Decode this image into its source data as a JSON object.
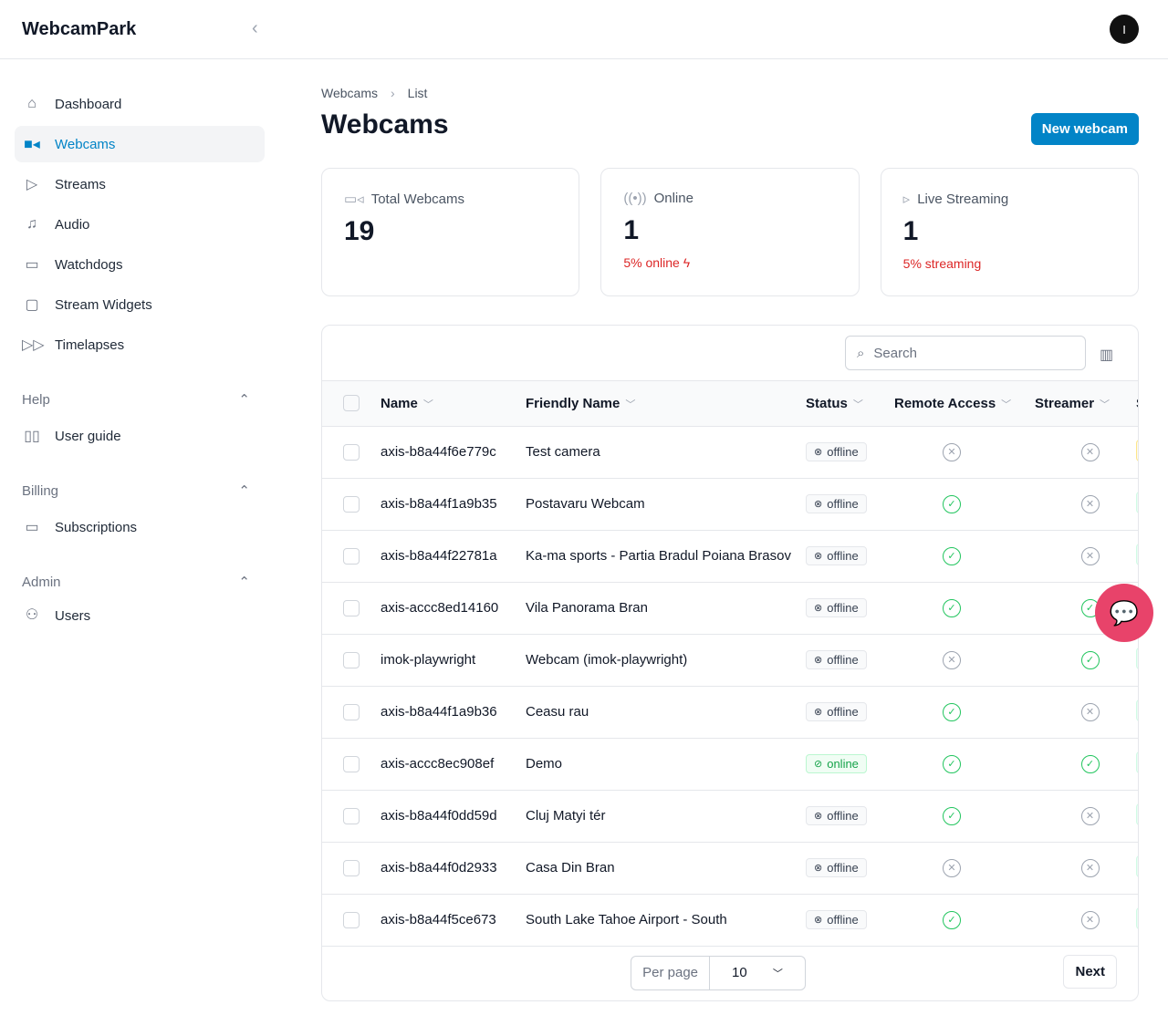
{
  "app": {
    "title": "WebcamPark",
    "avatar_initial": "I"
  },
  "sidebar": {
    "items": [
      {
        "label": "Dashboard",
        "icon": "home-icon"
      },
      {
        "label": "Webcams",
        "icon": "video-icon",
        "active": true
      },
      {
        "label": "Streams",
        "icon": "play-icon"
      },
      {
        "label": "Audio",
        "icon": "music-icon"
      },
      {
        "label": "Watchdogs",
        "icon": "monitor-icon"
      },
      {
        "label": "Stream Widgets",
        "icon": "message-icon"
      },
      {
        "label": "Timelapses",
        "icon": "fast-forward-icon"
      }
    ],
    "help": {
      "label": "Help",
      "items": [
        {
          "label": "User guide"
        }
      ]
    },
    "billing": {
      "label": "Billing",
      "items": [
        {
          "label": "Subscriptions"
        }
      ]
    },
    "admin": {
      "label": "Admin",
      "items": [
        {
          "label": "Users"
        }
      ]
    }
  },
  "breadcrumb": [
    "Webcams",
    "List"
  ],
  "page": {
    "title": "Webcams",
    "new_button": "New webcam"
  },
  "stats": [
    {
      "label": "Total Webcams",
      "value": "19",
      "sub": ""
    },
    {
      "label": "Online",
      "value": "1",
      "sub": "5% online"
    },
    {
      "label": "Live Streaming",
      "value": "1",
      "sub": "5% streaming"
    }
  ],
  "table": {
    "search_placeholder": "Search",
    "columns": [
      "Name",
      "Friendly Name",
      "Status",
      "Remote Access",
      "Streamer",
      "S"
    ],
    "rows": [
      {
        "name": "axis-b8a44f6e779c",
        "friendly": "Test camera",
        "status": "offline",
        "remote": false,
        "streamer": false
      },
      {
        "name": "axis-b8a44f1a9b35",
        "friendly": "Postavaru Webcam",
        "status": "offline",
        "remote": true,
        "streamer": false
      },
      {
        "name": "axis-b8a44f22781a",
        "friendly": "Ka-ma sports - Partia Bradul Poiana Brasov",
        "status": "offline",
        "remote": true,
        "streamer": false
      },
      {
        "name": "axis-accc8ed14160",
        "friendly": "Vila Panorama Bran",
        "status": "offline",
        "remote": true,
        "streamer": true
      },
      {
        "name": "imok-playwright",
        "friendly": "Webcam (imok-playwright)",
        "status": "offline",
        "remote": false,
        "streamer": true
      },
      {
        "name": "axis-b8a44f1a9b36",
        "friendly": "Ceasu rau",
        "status": "offline",
        "remote": true,
        "streamer": false
      },
      {
        "name": "axis-accc8ec908ef",
        "friendly": "Demo",
        "status": "online",
        "remote": true,
        "streamer": true
      },
      {
        "name": "axis-b8a44f0dd59d",
        "friendly": "Cluj Matyi tér",
        "status": "offline",
        "remote": true,
        "streamer": false
      },
      {
        "name": "axis-b8a44f0d2933",
        "friendly": "Casa Din Bran",
        "status": "offline",
        "remote": false,
        "streamer": false
      },
      {
        "name": "axis-b8a44f5ce673",
        "friendly": "South Lake Tahoe Airport - South",
        "status": "offline",
        "remote": true,
        "streamer": false
      }
    ],
    "per_page_label": "Per page",
    "per_page_value": "10",
    "next_label": "Next"
  },
  "colors": {
    "accent": "#0284c7",
    "danger": "#dc2626",
    "success": "#22c55e",
    "chat": "#e8436a"
  }
}
